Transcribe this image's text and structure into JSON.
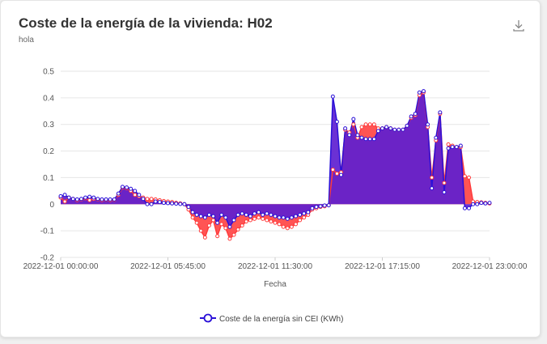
{
  "card": {
    "title": "Coste de la energía de la vivienda: H02",
    "subtitle": "hola"
  },
  "icons": {
    "download": "download-icon"
  },
  "colors": {
    "primary": "#2a10d8",
    "primary_fill": "#5e1fd0",
    "secondary": "#ff3b3b",
    "secondary_fill": "#ff4b4b",
    "grid": "#e6e6e6"
  },
  "chart_data": {
    "type": "area",
    "title": "Coste de la energía de la vivienda: H02",
    "subtitle": "hola",
    "xlabel": "Fecha",
    "ylabel": "",
    "x_tick_labels": [
      "2022-12-01 00:00:00",
      "2022-12-01 05:45:00",
      "2022-12-01 11:30:00",
      "2022-12-01 17:15:00",
      "2022-12-01 23:00:00"
    ],
    "x_range": [
      "2022-12-01 00:00:00",
      "2022-12-01 23:00:00"
    ],
    "x_interval_minutes": 15,
    "ylim": [
      -0.2,
      0.5
    ],
    "y_ticks": [
      -0.2,
      -0.1,
      0,
      0.1,
      0.2,
      0.3,
      0.4,
      0.5
    ],
    "grid": true,
    "legend_position": "bottom-center",
    "series": [
      {
        "name": "Coste de la energía sin CEI (KWh)",
        "values": [
          0.03,
          0.035,
          0.025,
          0.02,
          0.018,
          0.02,
          0.025,
          0.028,
          0.025,
          0.02,
          0.018,
          0.018,
          0.018,
          0.018,
          0.04,
          0.065,
          0.063,
          0.058,
          0.05,
          0.035,
          0.02,
          0,
          0,
          0.01,
          0.008,
          0.005,
          0.004,
          0.003,
          0.002,
          0.001,
          0,
          -0.01,
          -0.03,
          -0.04,
          -0.045,
          -0.05,
          -0.04,
          -0.045,
          -0.07,
          -0.04,
          -0.05,
          -0.085,
          -0.06,
          -0.04,
          -0.035,
          -0.04,
          -0.045,
          -0.035,
          -0.03,
          -0.04,
          -0.035,
          -0.04,
          -0.045,
          -0.05,
          -0.05,
          -0.055,
          -0.05,
          -0.045,
          -0.04,
          -0.035,
          -0.03,
          -0.015,
          -0.01,
          -0.008,
          -0.005,
          -0.004,
          0.405,
          0.31,
          0.11,
          0.285,
          0.26,
          0.32,
          0.26,
          0.25,
          0.245,
          0.245,
          0.245,
          0.275,
          0.285,
          0.29,
          0.285,
          0.28,
          0.28,
          0.28,
          0.295,
          0.33,
          0.34,
          0.42,
          0.425,
          0.3,
          0.06,
          0.25,
          0.345,
          0.045,
          0.21,
          0.215,
          0.215,
          0.22,
          -0.015,
          -0.015,
          0,
          0,
          0.005,
          0.003,
          0.005
        ],
        "color": "#2a10d8"
      },
      {
        "name": "",
        "values": [
          0.025,
          0.01,
          0.025,
          0.02,
          0.015,
          0.018,
          0.022,
          0.015,
          0.02,
          0.018,
          0.015,
          0.016,
          0.015,
          0.016,
          0.035,
          0.062,
          0.06,
          0.05,
          0.035,
          0.03,
          0.025,
          0.02,
          0.02,
          0.018,
          0.015,
          0.012,
          0.01,
          0.008,
          0.005,
          0.003,
          0,
          -0.02,
          -0.05,
          -0.07,
          -0.1,
          -0.125,
          -0.08,
          -0.06,
          -0.12,
          -0.075,
          -0.09,
          -0.13,
          -0.115,
          -0.095,
          -0.08,
          -0.065,
          -0.06,
          -0.055,
          -0.05,
          -0.055,
          -0.06,
          -0.065,
          -0.07,
          -0.075,
          -0.085,
          -0.09,
          -0.085,
          -0.075,
          -0.06,
          -0.05,
          -0.04,
          -0.02,
          -0.015,
          -0.01,
          -0.008,
          -0.004,
          0.13,
          0.115,
          0.12,
          0.28,
          0.27,
          0.3,
          0.25,
          0.29,
          0.3,
          0.3,
          0.3,
          0.285,
          0.285,
          0.29,
          0.285,
          0.28,
          0.28,
          0.28,
          0.295,
          0.325,
          0.335,
          0.41,
          0.42,
          0.29,
          0.1,
          0.24,
          0.34,
          0.08,
          0.225,
          0.22,
          0.215,
          0.215,
          0.105,
          0.1,
          0.01,
          0.008,
          0.007,
          0.005,
          0.003
        ],
        "color": "#ff3b3b"
      }
    ]
  }
}
